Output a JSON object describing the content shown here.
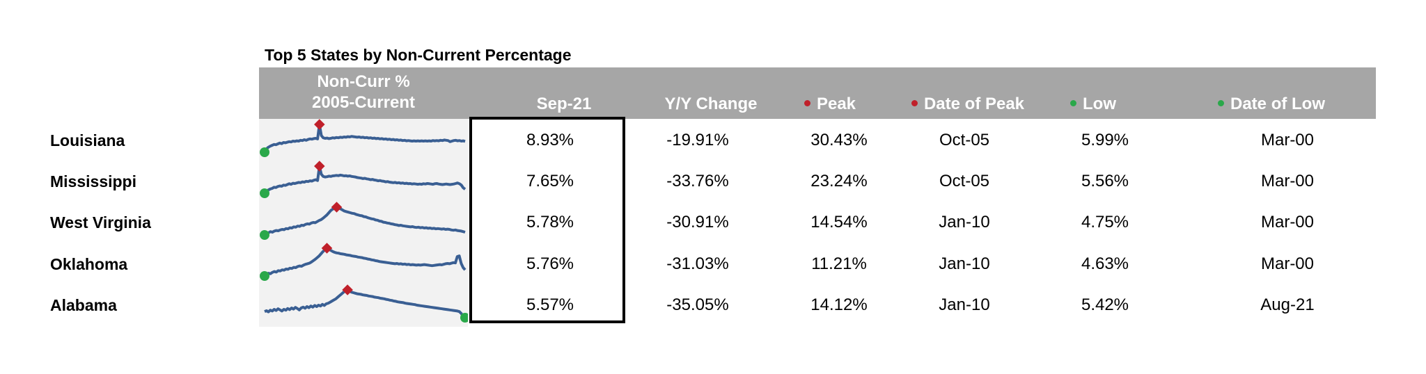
{
  "title": "Top 5 States by Non-Current Percentage",
  "headers": {
    "spark_line1": "Non-Curr %",
    "spark_line2": "2005-Current",
    "current": "Sep-21",
    "yoy": "Y/Y Change",
    "peak": "Peak",
    "date_peak": "Date of Peak",
    "low": "Low",
    "date_low": "Date of Low"
  },
  "colors": {
    "header_bg": "#a6a6a6",
    "line": "#3a5f93",
    "peak_marker": "#c0202a",
    "low_marker": "#2aa84a"
  },
  "chart_data": {
    "type": "table",
    "columns": [
      "Sep-21",
      "Y/Y Change",
      "Peak",
      "Date of Peak",
      "Low",
      "Date of Low"
    ],
    "rows": [
      {
        "state": "Louisiana",
        "current": "8.93%",
        "yoy": "-19.91%",
        "peak": "30.43%",
        "date_peak": "Oct-05",
        "low": "5.99%",
        "date_low": "Mar-00"
      },
      {
        "state": "Mississippi",
        "current": "7.65%",
        "yoy": "-33.76%",
        "peak": "23.24%",
        "date_peak": "Oct-05",
        "low": "5.56%",
        "date_low": "Mar-00"
      },
      {
        "state": "West Virginia",
        "current": "5.78%",
        "yoy": "-30.91%",
        "peak": "14.54%",
        "date_peak": "Jan-10",
        "low": "4.75%",
        "date_low": "Mar-00"
      },
      {
        "state": "Oklahoma",
        "current": "5.76%",
        "yoy": "-31.03%",
        "peak": "11.21%",
        "date_peak": "Jan-10",
        "low": "4.63%",
        "date_low": "Mar-00"
      },
      {
        "state": "Alabama",
        "current": "5.57%",
        "yoy": "-35.05%",
        "peak": "14.12%",
        "date_peak": "Jan-10",
        "low": "5.42%",
        "date_low": "Aug-21"
      }
    ],
    "sparklines": [
      {
        "values": [
          0.0,
          0.12,
          0.18,
          0.22,
          0.25,
          0.28,
          0.27,
          0.3,
          0.33,
          0.31,
          0.35,
          0.34,
          0.36,
          0.38,
          0.37,
          0.4,
          0.39,
          0.41,
          0.4,
          0.43,
          0.42,
          0.45,
          0.43,
          0.46,
          0.48,
          0.47,
          0.49,
          0.5,
          0.48,
          1.0,
          0.6,
          0.52,
          0.5,
          0.51,
          0.49,
          0.5,
          0.52,
          0.51,
          0.53,
          0.52,
          0.54,
          0.53,
          0.55,
          0.54,
          0.56,
          0.55,
          0.57,
          0.56,
          0.55,
          0.54,
          0.55,
          0.53,
          0.54,
          0.52,
          0.53,
          0.51,
          0.52,
          0.5,
          0.51,
          0.49,
          0.5,
          0.48,
          0.49,
          0.47,
          0.48,
          0.46,
          0.47,
          0.45,
          0.46,
          0.44,
          0.45,
          0.43,
          0.44,
          0.42,
          0.43,
          0.41,
          0.42,
          0.41,
          0.4,
          0.41,
          0.4,
          0.41,
          0.4,
          0.41,
          0.4,
          0.41,
          0.4,
          0.41,
          0.4,
          0.42,
          0.41,
          0.42,
          0.41,
          0.43,
          0.42,
          0.44,
          0.43,
          0.42,
          0.38,
          0.4,
          0.42,
          0.43,
          0.41,
          0.42,
          0.4,
          0.41,
          0.39
        ],
        "peak_index": 29,
        "low_index": 0
      },
      {
        "values": [
          0.0,
          0.08,
          0.12,
          0.16,
          0.18,
          0.22,
          0.21,
          0.25,
          0.27,
          0.26,
          0.3,
          0.29,
          0.32,
          0.35,
          0.33,
          0.37,
          0.36,
          0.38,
          0.4,
          0.39,
          0.42,
          0.41,
          0.44,
          0.43,
          0.46,
          0.45,
          0.48,
          0.5,
          0.47,
          1.0,
          0.7,
          0.62,
          0.6,
          0.61,
          0.63,
          0.62,
          0.64,
          0.65,
          0.66,
          0.65,
          0.67,
          0.66,
          0.64,
          0.65,
          0.63,
          0.64,
          0.62,
          0.61,
          0.6,
          0.58,
          0.57,
          0.56,
          0.54,
          0.55,
          0.53,
          0.52,
          0.5,
          0.51,
          0.49,
          0.48,
          0.46,
          0.47,
          0.45,
          0.44,
          0.42,
          0.43,
          0.41,
          0.4,
          0.39,
          0.4,
          0.38,
          0.39,
          0.37,
          0.38,
          0.36,
          0.37,
          0.35,
          0.36,
          0.34,
          0.35,
          0.34,
          0.33,
          0.34,
          0.33,
          0.35,
          0.34,
          0.36,
          0.35,
          0.34,
          0.33,
          0.35,
          0.36,
          0.34,
          0.33,
          0.32,
          0.33,
          0.34,
          0.33,
          0.32,
          0.33,
          0.34,
          0.36,
          0.38,
          0.35,
          0.3,
          0.2,
          0.15
        ],
        "peak_index": 29,
        "low_index": 0
      },
      {
        "values": [
          0.0,
          0.05,
          0.08,
          0.12,
          0.1,
          0.14,
          0.16,
          0.15,
          0.18,
          0.2,
          0.19,
          0.23,
          0.22,
          0.26,
          0.25,
          0.29,
          0.28,
          0.32,
          0.31,
          0.35,
          0.34,
          0.38,
          0.4,
          0.39,
          0.43,
          0.45,
          0.44,
          0.48,
          0.52,
          0.55,
          0.6,
          0.66,
          0.72,
          0.8,
          0.88,
          0.93,
          0.96,
          1.0,
          0.97,
          0.94,
          0.9,
          0.86,
          0.84,
          0.82,
          0.8,
          0.78,
          0.77,
          0.74,
          0.72,
          0.7,
          0.69,
          0.66,
          0.65,
          0.62,
          0.6,
          0.58,
          0.57,
          0.54,
          0.53,
          0.5,
          0.49,
          0.46,
          0.45,
          0.43,
          0.42,
          0.4,
          0.39,
          0.37,
          0.36,
          0.34,
          0.35,
          0.33,
          0.32,
          0.31,
          0.3,
          0.29,
          0.3,
          0.28,
          0.27,
          0.28,
          0.26,
          0.27,
          0.25,
          0.26,
          0.24,
          0.25,
          0.23,
          0.24,
          0.22,
          0.23,
          0.22,
          0.21,
          0.22,
          0.2,
          0.21,
          0.2,
          0.18,
          0.17,
          0.18,
          0.16,
          0.15,
          0.14,
          0.12,
          0.1
        ],
        "peak_index": 37,
        "low_index": 0
      },
      {
        "values": [
          0.0,
          0.06,
          0.1,
          0.08,
          0.13,
          0.16,
          0.14,
          0.19,
          0.18,
          0.22,
          0.21,
          0.25,
          0.24,
          0.28,
          0.27,
          0.31,
          0.3,
          0.34,
          0.36,
          0.35,
          0.39,
          0.42,
          0.44,
          0.46,
          0.5,
          0.55,
          0.6,
          0.66,
          0.72,
          0.8,
          0.88,
          0.94,
          1.0,
          0.96,
          0.92,
          0.88,
          0.85,
          0.83,
          0.82,
          0.8,
          0.79,
          0.78,
          0.76,
          0.75,
          0.74,
          0.72,
          0.71,
          0.7,
          0.68,
          0.67,
          0.66,
          0.64,
          0.63,
          0.61,
          0.6,
          0.58,
          0.57,
          0.55,
          0.54,
          0.52,
          0.51,
          0.5,
          0.49,
          0.48,
          0.47,
          0.46,
          0.45,
          0.44,
          0.45,
          0.43,
          0.44,
          0.42,
          0.43,
          0.41,
          0.42,
          0.4,
          0.41,
          0.4,
          0.39,
          0.4,
          0.39,
          0.4,
          0.41,
          0.4,
          0.39,
          0.38,
          0.37,
          0.38,
          0.39,
          0.4,
          0.41,
          0.4,
          0.42,
          0.44,
          0.45,
          0.44,
          0.46,
          0.48,
          0.47,
          0.7,
          0.72,
          0.45,
          0.3,
          0.22
        ],
        "peak_index": 32,
        "low_index": 0
      },
      {
        "values": [
          0.22,
          0.25,
          0.21,
          0.27,
          0.24,
          0.3,
          0.26,
          0.32,
          0.28,
          0.24,
          0.3,
          0.27,
          0.33,
          0.29,
          0.35,
          0.31,
          0.37,
          0.33,
          0.28,
          0.35,
          0.38,
          0.34,
          0.4,
          0.36,
          0.42,
          0.38,
          0.44,
          0.4,
          0.45,
          0.42,
          0.48,
          0.44,
          0.5,
          0.52,
          0.56,
          0.6,
          0.64,
          0.68,
          0.74,
          0.8,
          0.86,
          0.92,
          0.97,
          1.0,
          0.96,
          0.92,
          0.9,
          0.88,
          0.86,
          0.85,
          0.84,
          0.82,
          0.81,
          0.8,
          0.78,
          0.77,
          0.76,
          0.74,
          0.73,
          0.72,
          0.7,
          0.69,
          0.68,
          0.66,
          0.65,
          0.63,
          0.62,
          0.6,
          0.59,
          0.57,
          0.56,
          0.55,
          0.54,
          0.52,
          0.51,
          0.5,
          0.49,
          0.48,
          0.47,
          0.45,
          0.44,
          0.43,
          0.42,
          0.41,
          0.4,
          0.39,
          0.38,
          0.37,
          0.36,
          0.35,
          0.34,
          0.33,
          0.32,
          0.31,
          0.3,
          0.29,
          0.28,
          0.27,
          0.26,
          0.25,
          0.24,
          0.22,
          0.15,
          0.05,
          0.0
        ],
        "peak_index": 43,
        "low_index": 104
      }
    ]
  }
}
